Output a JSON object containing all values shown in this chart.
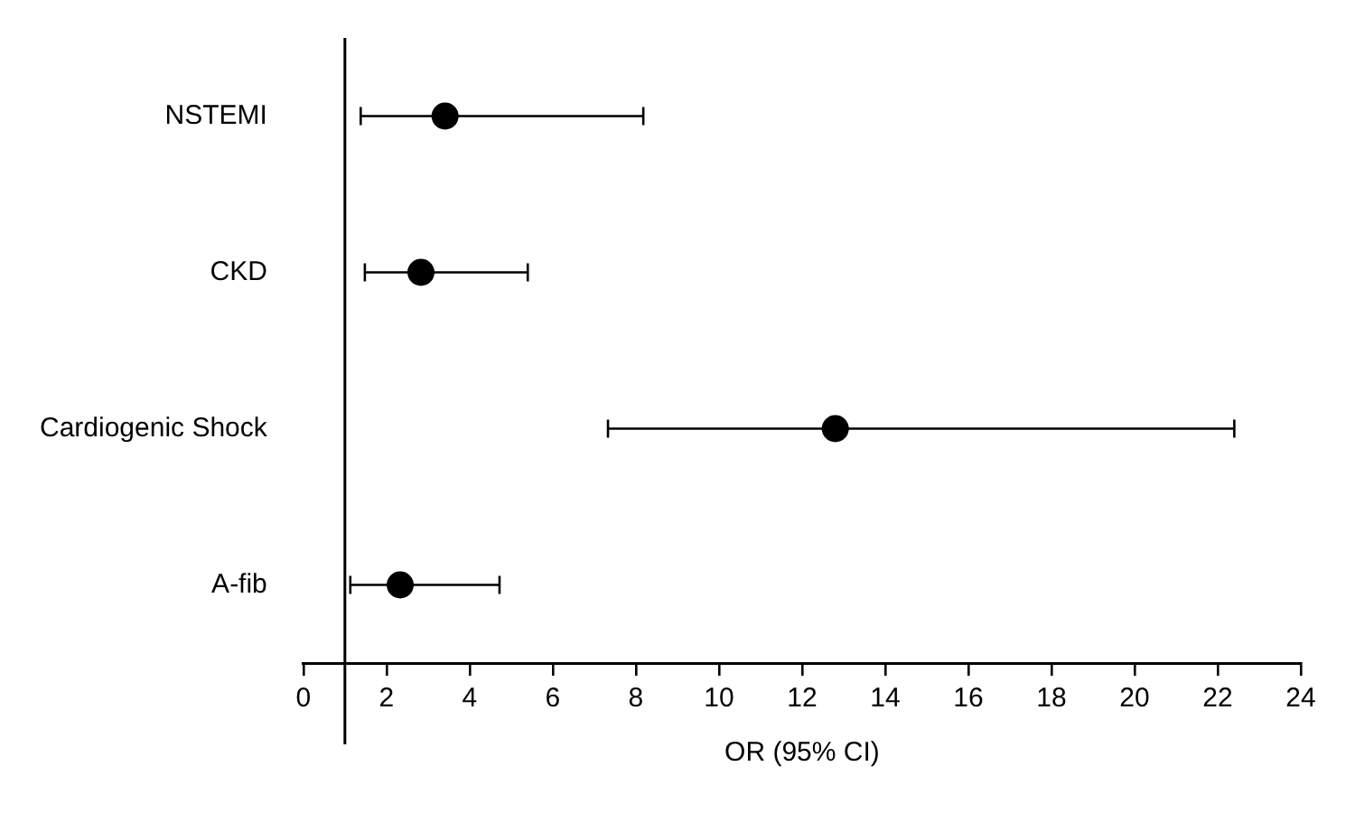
{
  "chart_data": {
    "type": "scatter",
    "orientation": "horizontal",
    "categories": [
      "NSTEMI",
      "CKD",
      "Cardiogenic Shock",
      "A-fib"
    ],
    "values": [
      3.41,
      2.83,
      12.8,
      2.33
    ],
    "errors": [
      [
        1.38,
        8.18
      ],
      [
        1.48,
        5.4
      ],
      [
        7.33,
        22.4
      ],
      [
        1.13,
        4.72
      ]
    ],
    "color": "#000000",
    "xlabel": "OR (95% CI)",
    "xlim": [
      0,
      24
    ],
    "xticks": [
      0,
      2,
      4,
      6,
      8,
      10,
      12,
      14,
      16,
      18,
      20,
      22,
      24
    ],
    "ref_lines": [
      {
        "axis": "x",
        "value": 1,
        "color": "#000000"
      }
    ],
    "marker": "circle",
    "grid": false,
    "legend": false
  }
}
